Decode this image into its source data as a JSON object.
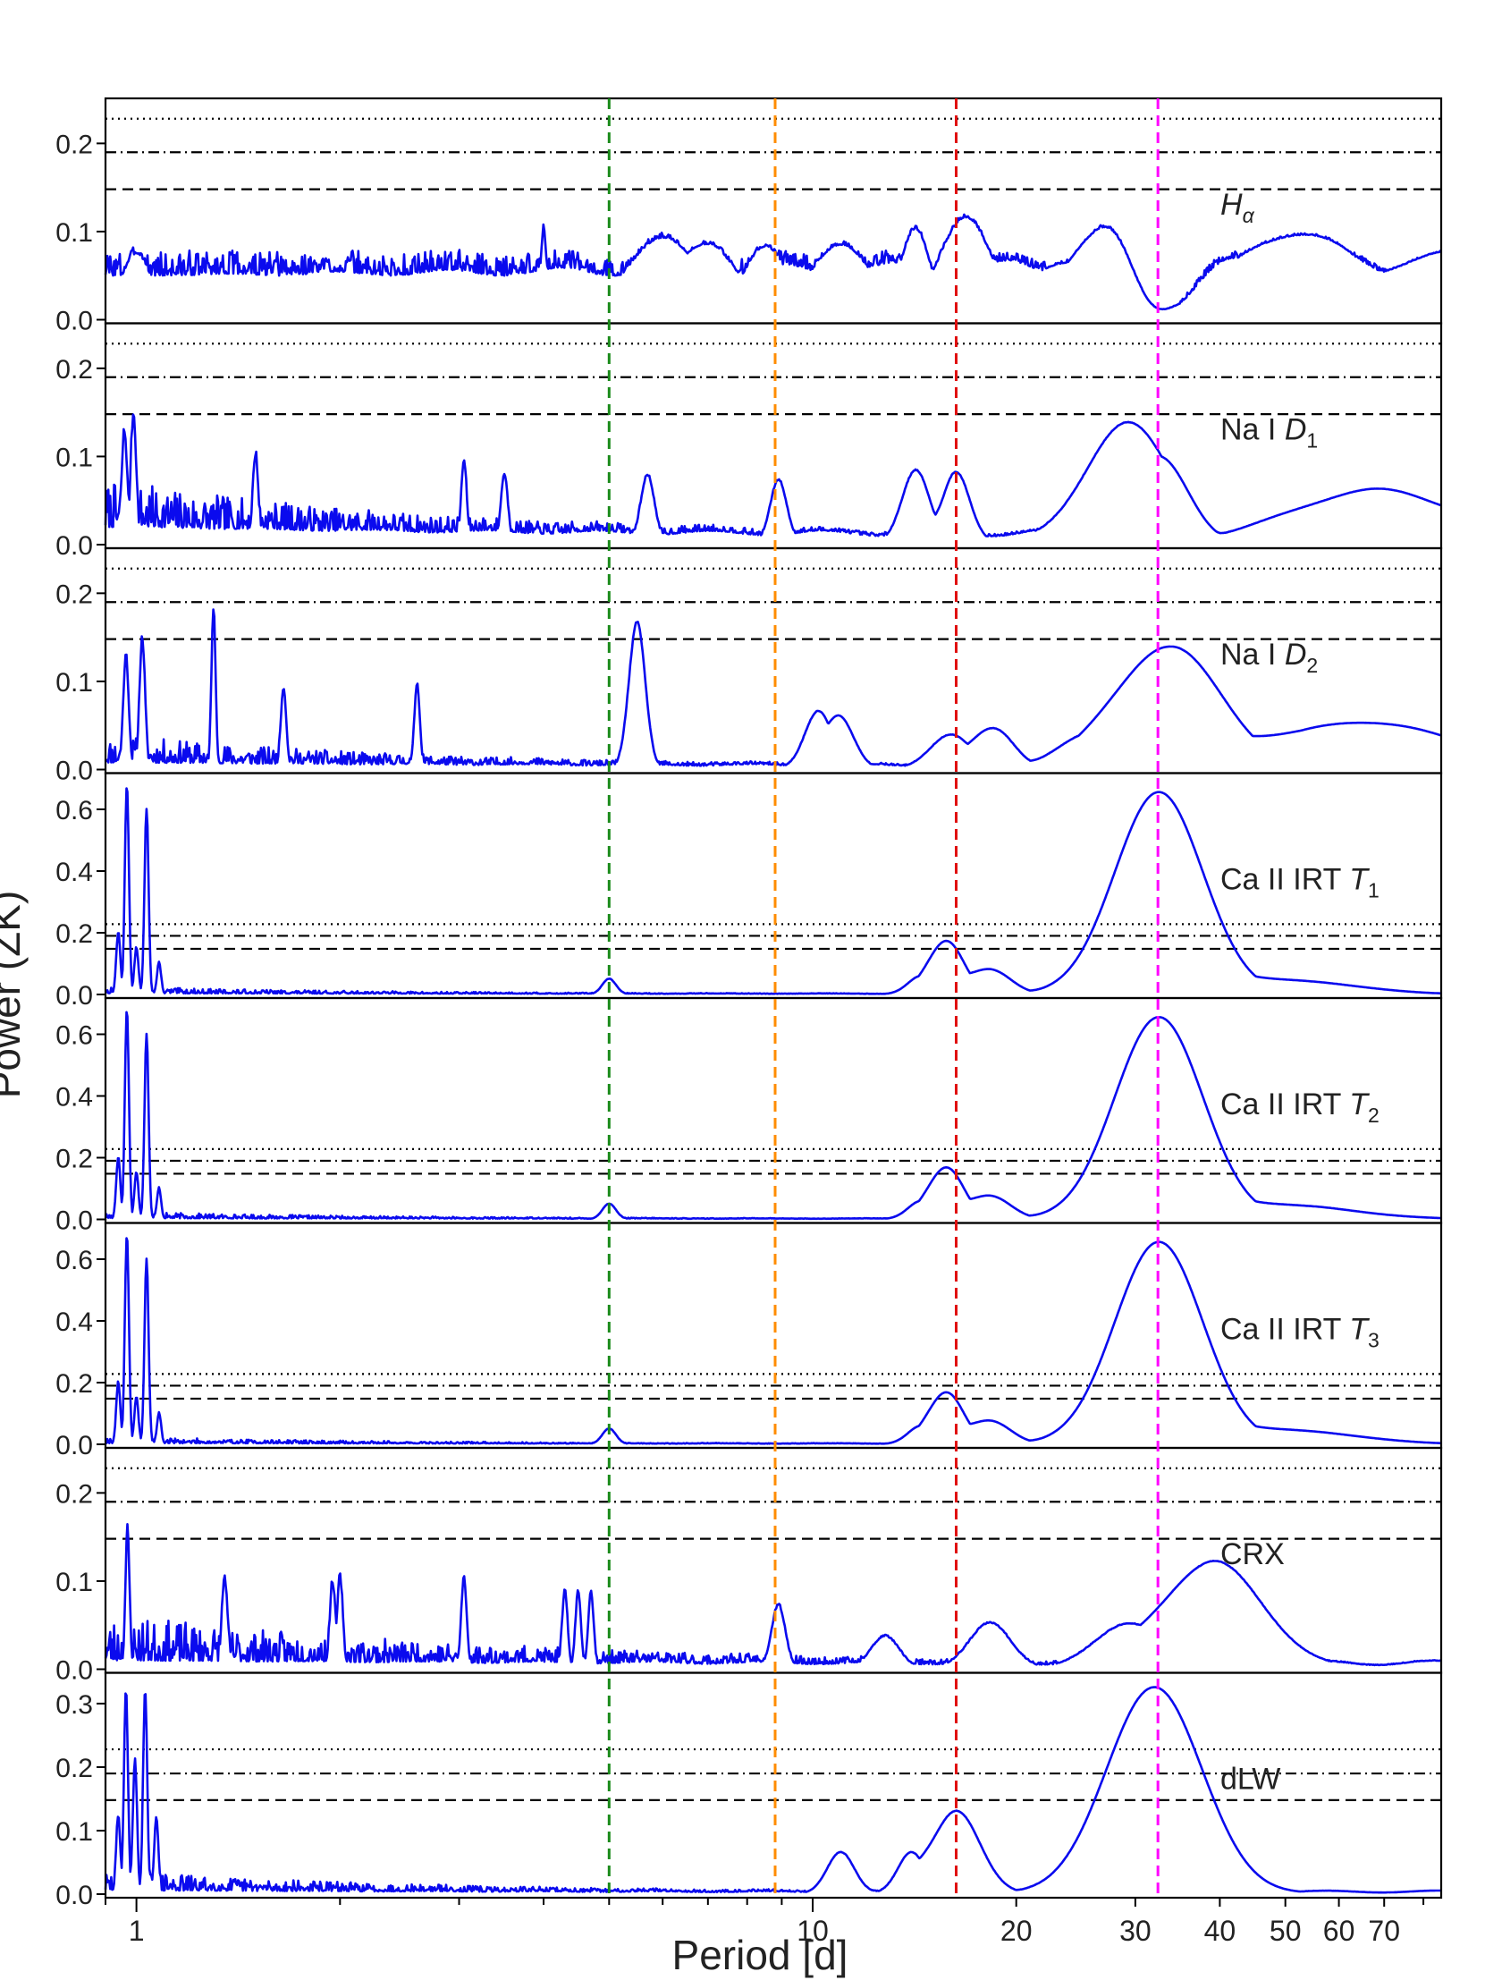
{
  "chart_data": {
    "type": "line",
    "xlabel": "Period [d]",
    "ylabel": "Power (ZK)",
    "x_scale": "log",
    "xlim": [
      0.9,
      85
    ],
    "x_ticks": [
      {
        "value": 1,
        "label": "1"
      },
      {
        "value": 10,
        "label": "10"
      },
      {
        "value": 20,
        "label": "20"
      },
      {
        "value": 30,
        "label": "30"
      },
      {
        "value": 40,
        "label": "40"
      },
      {
        "value": 50,
        "label": "50"
      },
      {
        "value": 60,
        "label": "60"
      },
      {
        "value": 70,
        "label": "70"
      }
    ],
    "fap_levels": [
      {
        "style": "dotted",
        "value": 0.228
      },
      {
        "style": "dash-dot",
        "value": 0.19
      },
      {
        "style": "dashed",
        "value": 0.148
      }
    ],
    "vertical_lines": [
      {
        "period": 5.0,
        "color": "#1a8a1a"
      },
      {
        "period": 8.8,
        "color": "#ff8c00"
      },
      {
        "period": 16.3,
        "color": "#e01010"
      },
      {
        "period": 32.4,
        "color": "#ff00ff"
      }
    ],
    "line_color": "#0a0aee",
    "panels": [
      {
        "label": "",
        "label_main": "H",
        "label_sub": "α",
        "ylim": [
          0,
          0.245
        ],
        "yticks": [
          "0.0",
          "0.1",
          "0.2"
        ],
        "noise": {
          "base": 0.05,
          "amp": 0.03,
          "decay": 0.0,
          "seed": 3
        },
        "peaks": [
          [
            1.0,
            0.06,
            0.02
          ],
          [
            4.0,
            0.085,
            0.004
          ],
          [
            6.0,
            0.075,
            0.05
          ],
          [
            7.0,
            0.07,
            0.04
          ],
          [
            8.5,
            0.065,
            0.03
          ],
          [
            11.0,
            0.07,
            0.04
          ],
          [
            14.2,
            0.085,
            0.02
          ],
          [
            16.8,
            0.1,
            0.035
          ],
          [
            24.0,
            0.05,
            0.06
          ],
          [
            28.5,
            0.105,
            0.06
          ],
          [
            40.0,
            0.04,
            0.05
          ],
          [
            52.0,
            0.08,
            0.09
          ],
          [
            85.0,
            0.055,
            0.1
          ]
        ],
        "dips": [
          [
            32.6,
            0.04
          ]
        ]
      },
      {
        "label": "Na I ",
        "label_main": "D",
        "label_sub": "1",
        "ylim": [
          0,
          0.245
        ],
        "yticks": [
          "0.0",
          "0.1",
          "0.2"
        ],
        "noise": {
          "base": 0.02,
          "amp": 0.05,
          "decay": 0.55,
          "seed": 7
        },
        "peaks": [
          [
            0.99,
            0.14,
            0.004
          ],
          [
            0.96,
            0.12,
            0.004
          ],
          [
            1.5,
            0.095,
            0.004
          ],
          [
            3.05,
            0.09,
            0.004
          ],
          [
            3.5,
            0.075,
            0.005
          ],
          [
            5.7,
            0.075,
            0.01
          ],
          [
            8.9,
            0.07,
            0.012
          ],
          [
            14.2,
            0.08,
            0.02
          ],
          [
            16.3,
            0.078,
            0.02
          ],
          [
            29.2,
            0.135,
            0.06
          ],
          [
            33.0,
            0.07,
            0.04
          ],
          [
            68.0,
            0.058,
            0.12
          ]
        ],
        "dips": []
      },
      {
        "label": "Na I ",
        "label_main": "D",
        "label_sub": "2",
        "ylim": [
          0,
          0.245
        ],
        "yticks": [
          "0.0",
          "0.1",
          "0.2"
        ],
        "noise": {
          "base": 0.008,
          "amp": 0.03,
          "decay": 0.6,
          "seed": 11
        },
        "peaks": [
          [
            1.3,
            0.18,
            0.003
          ],
          [
            1.02,
            0.145,
            0.004
          ],
          [
            0.965,
            0.125,
            0.004
          ],
          [
            5.5,
            0.165,
            0.012
          ],
          [
            1.65,
            0.09,
            0.004
          ],
          [
            2.6,
            0.095,
            0.004
          ],
          [
            10.2,
            0.065,
            0.02
          ],
          [
            11.0,
            0.055,
            0.02
          ],
          [
            16.0,
            0.038,
            0.03
          ],
          [
            18.5,
            0.045,
            0.03
          ],
          [
            26.0,
            0.04,
            0.05
          ],
          [
            33.8,
            0.138,
            0.075
          ],
          [
            65.0,
            0.052,
            0.14
          ]
        ],
        "dips": []
      },
      {
        "label": "Ca II IRT ",
        "label_main": "T",
        "label_sub": "1",
        "ylim": [
          0,
          0.7
        ],
        "yticks": [
          "0.0",
          "0.2",
          "0.4",
          "0.6"
        ],
        "noise": {
          "base": 0.004,
          "amp": 0.02,
          "decay": 0.7,
          "seed": 13
        },
        "peaks": [
          [
            0.968,
            0.68,
            0.003
          ],
          [
            1.035,
            0.6,
            0.003
          ],
          [
            0.94,
            0.2,
            0.003
          ],
          [
            1.0,
            0.15,
            0.003
          ],
          [
            1.08,
            0.1,
            0.003
          ],
          [
            5.0,
            0.05,
            0.01
          ],
          [
            14.5,
            0.06,
            0.02
          ],
          [
            15.8,
            0.17,
            0.025
          ],
          [
            18.3,
            0.08,
            0.03
          ],
          [
            32.5,
            0.655,
            0.065
          ],
          [
            50.0,
            0.045,
            0.1
          ]
        ],
        "dips": []
      },
      {
        "label": "Ca II IRT ",
        "label_main": "T",
        "label_sub": "2",
        "ylim": [
          0,
          0.7
        ],
        "yticks": [
          "0.0",
          "0.2",
          "0.4",
          "0.6"
        ],
        "noise": {
          "base": 0.004,
          "amp": 0.02,
          "decay": 0.7,
          "seed": 17
        },
        "peaks": [
          [
            0.968,
            0.68,
            0.003
          ],
          [
            1.035,
            0.6,
            0.003
          ],
          [
            0.94,
            0.2,
            0.003
          ],
          [
            1.0,
            0.15,
            0.003
          ],
          [
            1.08,
            0.1,
            0.003
          ],
          [
            5.0,
            0.05,
            0.01
          ],
          [
            14.5,
            0.06,
            0.02
          ],
          [
            15.8,
            0.165,
            0.025
          ],
          [
            18.3,
            0.075,
            0.03
          ],
          [
            32.5,
            0.655,
            0.065
          ],
          [
            50.0,
            0.045,
            0.1
          ]
        ],
        "dips": []
      },
      {
        "label": "Ca II IRT ",
        "label_main": "T",
        "label_sub": "3",
        "ylim": [
          0,
          0.7
        ],
        "yticks": [
          "0.0",
          "0.2",
          "0.4",
          "0.6"
        ],
        "noise": {
          "base": 0.004,
          "amp": 0.02,
          "decay": 0.7,
          "seed": 19
        },
        "peaks": [
          [
            0.968,
            0.68,
            0.003
          ],
          [
            1.035,
            0.6,
            0.003
          ],
          [
            0.94,
            0.2,
            0.003
          ],
          [
            1.0,
            0.15,
            0.003
          ],
          [
            1.08,
            0.1,
            0.003
          ],
          [
            5.0,
            0.05,
            0.01
          ],
          [
            14.5,
            0.06,
            0.02
          ],
          [
            15.8,
            0.165,
            0.025
          ],
          [
            18.3,
            0.075,
            0.03
          ],
          [
            32.5,
            0.655,
            0.065
          ],
          [
            50.0,
            0.045,
            0.1
          ]
        ],
        "dips": []
      },
      {
        "label": "CRX",
        "label_main": "",
        "label_sub": "",
        "ylim": [
          0,
          0.245
        ],
        "yticks": [
          "0.0",
          "0.1",
          "0.2"
        ],
        "noise": {
          "base": 0.01,
          "amp": 0.05,
          "decay": 0.4,
          "seed": 23
        },
        "peaks": [
          [
            0.97,
            0.15,
            0.003
          ],
          [
            1.35,
            0.1,
            0.004
          ],
          [
            1.95,
            0.095,
            0.004
          ],
          [
            2.0,
            0.1,
            0.004
          ],
          [
            3.05,
            0.1,
            0.004
          ],
          [
            4.3,
            0.085,
            0.004
          ],
          [
            4.5,
            0.085,
            0.004
          ],
          [
            4.7,
            0.085,
            0.004
          ],
          [
            8.9,
            0.07,
            0.01
          ],
          [
            12.8,
            0.035,
            0.02
          ],
          [
            18.3,
            0.05,
            0.03
          ],
          [
            29.5,
            0.05,
            0.05
          ],
          [
            39.3,
            0.12,
            0.07
          ]
        ],
        "dips": []
      },
      {
        "label": "dLW",
        "label_main": "",
        "label_sub": "",
        "ylim": [
          0,
          0.34
        ],
        "yticks": [
          "0.0",
          "0.1",
          "0.2",
          "0.3"
        ],
        "noise": {
          "base": 0.006,
          "amp": 0.03,
          "decay": 0.6,
          "seed": 29
        },
        "peaks": [
          [
            0.965,
            0.315,
            0.003
          ],
          [
            1.03,
            0.315,
            0.003
          ],
          [
            0.995,
            0.21,
            0.003
          ],
          [
            0.94,
            0.12,
            0.003
          ],
          [
            1.07,
            0.12,
            0.003
          ],
          [
            11.0,
            0.065,
            0.02
          ],
          [
            14.0,
            0.065,
            0.02
          ],
          [
            16.3,
            0.13,
            0.035
          ],
          [
            32.0,
            0.325,
            0.07
          ]
        ],
        "dips": []
      }
    ]
  }
}
